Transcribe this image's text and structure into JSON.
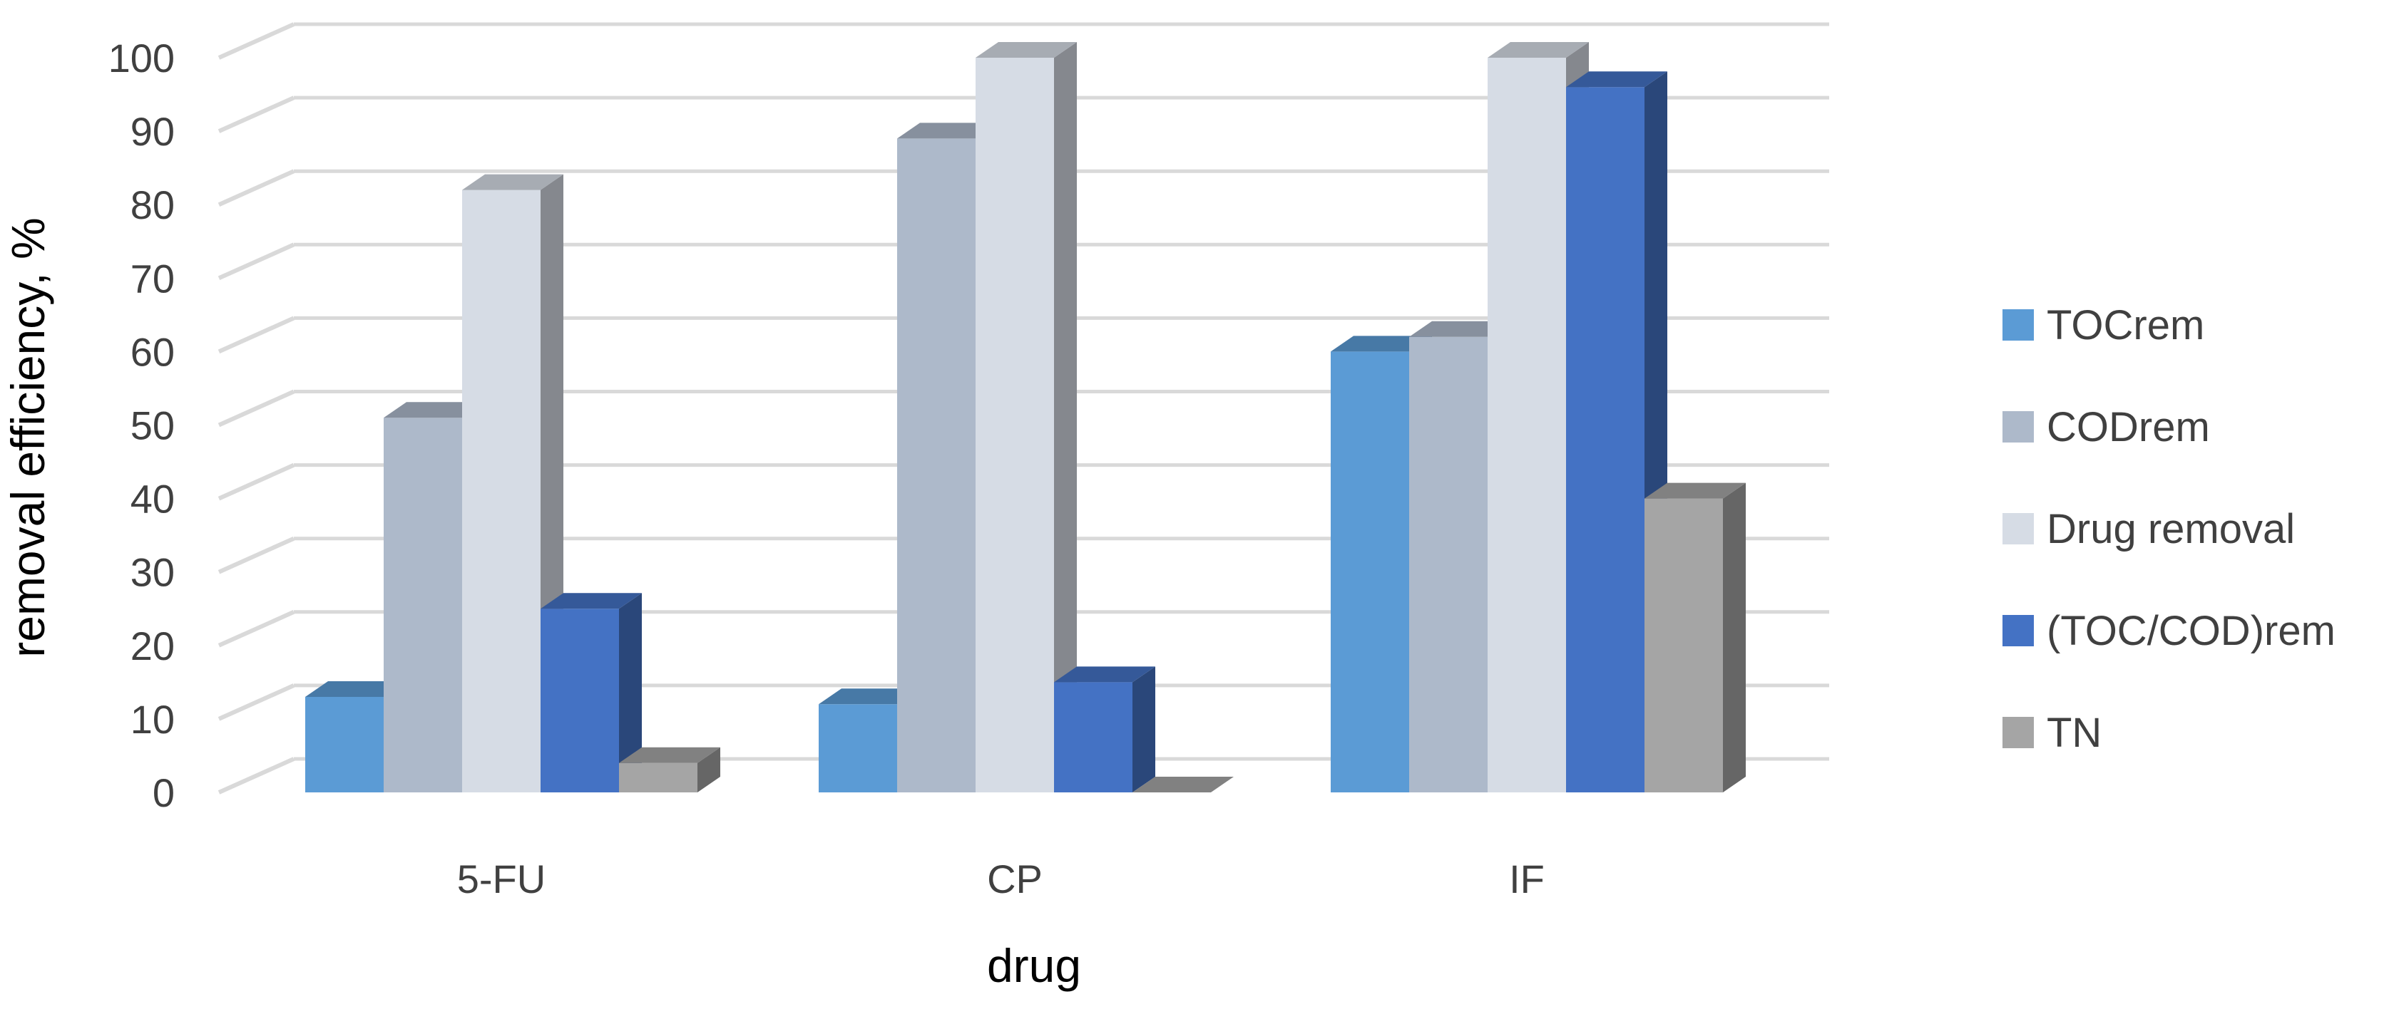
{
  "chart_data": {
    "type": "bar",
    "style": "3d-clustered-column",
    "xlabel": "drug",
    "ylabel": "removal efficiency, %",
    "ylim": [
      0,
      100
    ],
    "yticks": [
      0,
      10,
      20,
      30,
      40,
      50,
      60,
      70,
      80,
      90,
      100
    ],
    "grid": true,
    "legend_position": "right",
    "categories": [
      "5-FU",
      "CP",
      "IF"
    ],
    "series": [
      {
        "name": "TOCrem",
        "values": [
          13,
          12,
          60
        ],
        "color": "#5B9BD5"
      },
      {
        "name": "CODrem",
        "values": [
          51,
          89,
          62
        ],
        "color": "#ADB9CA"
      },
      {
        "name": "Drug removal",
        "values": [
          82,
          100,
          100
        ],
        "color": "#D6DCE5"
      },
      {
        "name": "(TOC/COD)rem",
        "values": [
          25,
          15,
          96
        ],
        "color": "#4472C4"
      },
      {
        "name": "TN",
        "values": [
          4,
          0,
          40
        ],
        "color": "#A5A5A5"
      }
    ]
  }
}
